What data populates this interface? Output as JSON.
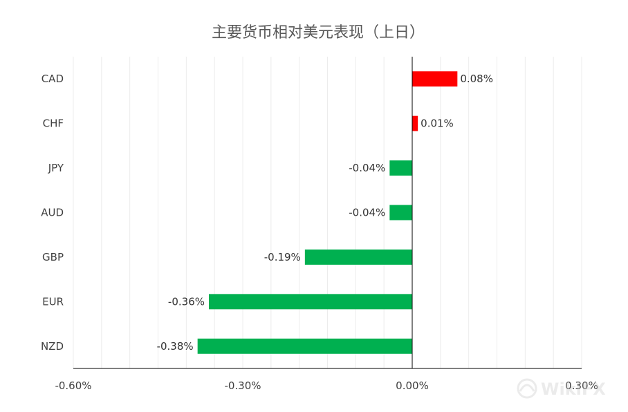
{
  "chart_data": {
    "type": "bar",
    "orientation": "horizontal",
    "title": "主要货币相对美元表现（上日）",
    "categories": [
      "CAD",
      "CHF",
      "JPY",
      "AUD",
      "GBP",
      "EUR",
      "NZD"
    ],
    "values": [
      0.08,
      0.01,
      -0.04,
      -0.04,
      -0.19,
      -0.36,
      -0.38
    ],
    "value_labels": [
      "0.08%",
      "0.01%",
      "-0.04%",
      "-0.04%",
      "-0.19%",
      "-0.36%",
      "-0.38%"
    ],
    "xlim": [
      -0.6,
      0.3
    ],
    "x_ticks": [
      -0.6,
      -0.3,
      0.0,
      0.3
    ],
    "x_tick_labels": [
      "-0.60%",
      "-0.30%",
      "0.00%",
      "0.30%"
    ],
    "grid": true,
    "legend": "none",
    "colors": {
      "positive": "#ff0000",
      "negative": "#00b050",
      "grid": "#ececec",
      "axis": "#000000"
    }
  },
  "watermark": {
    "text": "WikiFX"
  }
}
